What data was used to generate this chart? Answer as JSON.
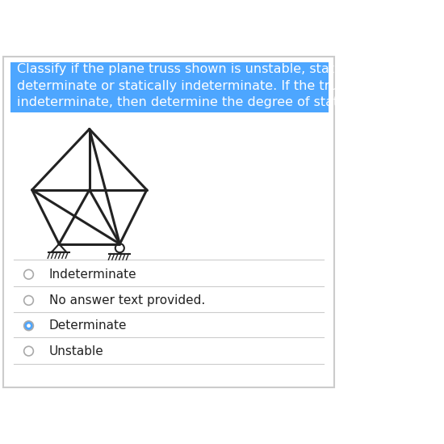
{
  "bg_color": "#ffffff",
  "border_color": "#cccccc",
  "title_bg_color": "#4da6ff",
  "title_text": "Classify if the plane truss shown is unstable, statically\ndeterminate or statically indeterminate. If the truss is statically\nindeterminate, then determine the degree of static indeterminacy.",
  "title_text_color": "#ffffff",
  "title_fontsize": 11.5,
  "options": [
    {
      "label": "Indeterminate",
      "selected": false
    },
    {
      "label": "No answer text provided.",
      "selected": false
    },
    {
      "label": "Determinate",
      "selected": true
    },
    {
      "label": "Unstable",
      "selected": false
    }
  ],
  "option_fontsize": 11,
  "radio_selected_color": "#4da6ff",
  "radio_unselected_color": "#ffffff",
  "divider_color": "#cccccc",
  "truss_color": "#222222",
  "truss_lw": 2.2
}
